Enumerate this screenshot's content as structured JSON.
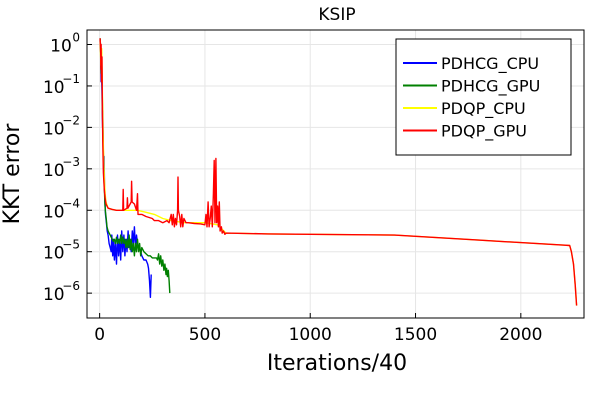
{
  "chart_data": {
    "type": "line",
    "title": "KSIP",
    "xlabel": "Iterations/40",
    "ylabel": "KKT error",
    "xlim": [
      -60,
      2300
    ],
    "ylim_log10": [
      -6.6,
      0.35
    ],
    "yscale": "log",
    "grid": true,
    "legend_position": "top-right",
    "x_ticks": [
      0,
      500,
      1000,
      1500,
      2000
    ],
    "x_tick_labels": [
      "0",
      "500",
      "1000",
      "1500",
      "2000"
    ],
    "y_ticks_log10": [
      0,
      -1,
      -2,
      -3,
      -4,
      -5,
      -6
    ],
    "y_tick_labels": [
      {
        "base": "10",
        "exp": "0"
      },
      {
        "base": "10",
        "exp": "−1"
      },
      {
        "base": "10",
        "exp": "−2"
      },
      {
        "base": "10",
        "exp": "−3"
      },
      {
        "base": "10",
        "exp": "−4"
      },
      {
        "base": "10",
        "exp": "−5"
      },
      {
        "base": "10",
        "exp": "−6"
      }
    ],
    "series": [
      {
        "name": "PDHCG_CPU",
        "color": "#0000ff",
        "points": [
          [
            2,
            0.1
          ],
          [
            5,
            -0.2
          ],
          [
            7,
            -0.9
          ],
          [
            8,
            -0.25
          ],
          [
            10,
            -0.8
          ],
          [
            12,
            -1.5
          ],
          [
            14,
            -2.0
          ],
          [
            15,
            -1.6
          ],
          [
            17,
            -2.5
          ],
          [
            19,
            -3.0
          ],
          [
            21,
            -2.7
          ],
          [
            23,
            -3.4
          ],
          [
            25,
            -3.8
          ],
          [
            28,
            -4.1
          ],
          [
            32,
            -4.3
          ],
          [
            36,
            -4.5
          ],
          [
            40,
            -4.6
          ],
          [
            45,
            -4.8
          ],
          [
            50,
            -4.9
          ],
          [
            55,
            -5.0
          ],
          [
            58,
            -4.6
          ],
          [
            62,
            -5.1
          ],
          [
            66,
            -4.7
          ],
          [
            70,
            -5.2
          ],
          [
            75,
            -4.8
          ],
          [
            80,
            -5.3
          ],
          [
            85,
            -4.6
          ],
          [
            90,
            -5.1
          ],
          [
            95,
            -4.7
          ],
          [
            100,
            -5.2
          ],
          [
            105,
            -4.5
          ],
          [
            110,
            -5.0
          ],
          [
            115,
            -4.6
          ],
          [
            120,
            -5.1
          ],
          [
            125,
            -4.7
          ],
          [
            130,
            -5.0
          ],
          [
            135,
            -4.5
          ],
          [
            140,
            -4.9
          ],
          [
            145,
            -4.7
          ],
          [
            150,
            -5.0
          ],
          [
            155,
            -4.5
          ],
          [
            160,
            -4.8
          ],
          [
            165,
            -4.4
          ],
          [
            170,
            -4.9
          ],
          [
            175,
            -4.6
          ],
          [
            180,
            -4.8
          ],
          [
            185,
            -4.9
          ],
          [
            190,
            -4.9
          ],
          [
            195,
            -5.0
          ],
          [
            200,
            -5.1
          ],
          [
            210,
            -5.2
          ],
          [
            220,
            -5.2
          ],
          [
            228,
            -5.3
          ],
          [
            232,
            -5.4
          ],
          [
            237,
            -5.7
          ],
          [
            241,
            -6.1
          ],
          [
            245,
            -5.55
          ]
        ]
      },
      {
        "name": "PDHCG_GPU",
        "color": "#008000",
        "points": [
          [
            2,
            0.15
          ],
          [
            5,
            -0.1
          ],
          [
            7,
            -0.7
          ],
          [
            9,
            -0.2
          ],
          [
            11,
            -0.7
          ],
          [
            13,
            -1.4
          ],
          [
            15,
            -2.0
          ],
          [
            17,
            -2.4
          ],
          [
            19,
            -2.9
          ],
          [
            21,
            -3.3
          ],
          [
            24,
            -3.7
          ],
          [
            27,
            -4.0
          ],
          [
            31,
            -4.2
          ],
          [
            35,
            -4.4
          ],
          [
            40,
            -4.5
          ],
          [
            45,
            -4.55
          ],
          [
            50,
            -4.6
          ],
          [
            55,
            -4.65
          ],
          [
            60,
            -4.7
          ],
          [
            65,
            -4.75
          ],
          [
            70,
            -4.7
          ],
          [
            75,
            -4.8
          ],
          [
            80,
            -4.65
          ],
          [
            85,
            -4.8
          ],
          [
            90,
            -4.7
          ],
          [
            95,
            -4.8
          ],
          [
            100,
            -4.6
          ],
          [
            105,
            -4.8
          ],
          [
            110,
            -4.65
          ],
          [
            115,
            -4.8
          ],
          [
            120,
            -4.7
          ],
          [
            125,
            -4.9
          ],
          [
            130,
            -4.7
          ],
          [
            135,
            -4.9
          ],
          [
            140,
            -4.6
          ],
          [
            145,
            -4.95
          ],
          [
            150,
            -4.7
          ],
          [
            155,
            -5.0
          ],
          [
            160,
            -4.8
          ],
          [
            165,
            -5.1
          ],
          [
            170,
            -4.8
          ],
          [
            175,
            -5.0
          ],
          [
            180,
            -4.7
          ],
          [
            185,
            -5.0
          ],
          [
            190,
            -4.8
          ],
          [
            195,
            -5.1
          ],
          [
            200,
            -4.9
          ],
          [
            210,
            -5.0
          ],
          [
            220,
            -5.05
          ],
          [
            230,
            -5.1
          ],
          [
            240,
            -5.1
          ],
          [
            250,
            -5.15
          ],
          [
            260,
            -5.15
          ],
          [
            270,
            -5.15
          ],
          [
            275,
            -5.2
          ],
          [
            280,
            -5.05
          ],
          [
            285,
            -5.3
          ],
          [
            290,
            -5.1
          ],
          [
            295,
            -5.35
          ],
          [
            300,
            -5.2
          ],
          [
            305,
            -5.45
          ],
          [
            310,
            -5.3
          ],
          [
            315,
            -5.55
          ],
          [
            318,
            -5.4
          ],
          [
            322,
            -5.6
          ],
          [
            326,
            -5.45
          ],
          [
            330,
            -5.7
          ],
          [
            333,
            -6.0
          ]
        ]
      },
      {
        "name": "PDQP_CPU",
        "color": "#ffff00",
        "points": [
          [
            2,
            0.1
          ],
          [
            6,
            -0.5
          ],
          [
            10,
            -0.1
          ],
          [
            14,
            -1.5
          ],
          [
            18,
            -2.5
          ],
          [
            22,
            -3.2
          ],
          [
            26,
            -3.6
          ],
          [
            30,
            -3.8
          ],
          [
            40,
            -3.95
          ],
          [
            60,
            -3.98
          ],
          [
            80,
            -4.0
          ],
          [
            100,
            -4.0
          ],
          [
            140,
            -4.0
          ],
          [
            180,
            -4.0
          ],
          [
            220,
            -4.05
          ],
          [
            260,
            -4.1
          ],
          [
            300,
            -4.2
          ],
          [
            340,
            -4.25
          ],
          [
            400,
            -4.3
          ],
          [
            500,
            -4.3
          ],
          [
            560,
            -4.35
          ],
          [
            600,
            -4.55
          ],
          [
            800,
            -4.57
          ],
          [
            1000,
            -4.58
          ],
          [
            1200,
            -4.59
          ],
          [
            1400,
            -4.6
          ],
          [
            1600,
            -4.66
          ],
          [
            1800,
            -4.72
          ],
          [
            2000,
            -4.78
          ],
          [
            2200,
            -4.84
          ],
          [
            2232,
            -4.85
          ],
          [
            2240,
            -5.0
          ],
          [
            2250,
            -5.3
          ],
          [
            2258,
            -5.8
          ],
          [
            2265,
            -6.3
          ]
        ]
      },
      {
        "name": "PDQP_GPU",
        "color": "#ff0000",
        "points": [
          [
            2,
            0.15
          ],
          [
            5,
            -0.2
          ],
          [
            6,
            -0.6
          ],
          [
            7,
            0.0
          ],
          [
            9,
            -0.9
          ],
          [
            11,
            -0.3
          ],
          [
            13,
            -1.6
          ],
          [
            15,
            -2.4
          ],
          [
            18,
            -3.1
          ],
          [
            22,
            -3.5
          ],
          [
            26,
            -3.7
          ],
          [
            30,
            -3.85
          ],
          [
            40,
            -3.95
          ],
          [
            60,
            -3.98
          ],
          [
            80,
            -4.0
          ],
          [
            100,
            -4.0
          ],
          [
            110,
            -4.0
          ],
          [
            112,
            -3.5
          ],
          [
            114,
            -4.0
          ],
          [
            130,
            -3.95
          ],
          [
            132,
            -3.7
          ],
          [
            134,
            -3.95
          ],
          [
            150,
            -3.8
          ],
          [
            152,
            -3.3
          ],
          [
            154,
            -3.8
          ],
          [
            165,
            -3.85
          ],
          [
            175,
            -4.0
          ],
          [
            180,
            -3.6
          ],
          [
            182,
            -4.1
          ],
          [
            200,
            -4.1
          ],
          [
            220,
            -4.15
          ],
          [
            250,
            -4.2
          ],
          [
            260,
            -4.25
          ],
          [
            280,
            -4.25
          ],
          [
            300,
            -4.3
          ],
          [
            320,
            -4.25
          ],
          [
            330,
            -4.3
          ],
          [
            340,
            -4.1
          ],
          [
            345,
            -4.35
          ],
          [
            350,
            -4.1
          ],
          [
            355,
            -4.4
          ],
          [
            360,
            -4.2
          ],
          [
            365,
            -4.35
          ],
          [
            370,
            -4.0
          ],
          [
            372,
            -3.2
          ],
          [
            374,
            -4.0
          ],
          [
            380,
            -4.15
          ],
          [
            385,
            -4.4
          ],
          [
            390,
            -4.1
          ],
          [
            395,
            -4.4
          ],
          [
            400,
            -4.2
          ],
          [
            410,
            -4.3
          ],
          [
            420,
            -4.3
          ],
          [
            450,
            -4.32
          ],
          [
            480,
            -4.33
          ],
          [
            500,
            -4.35
          ],
          [
            505,
            -4.1
          ],
          [
            510,
            -4.4
          ],
          [
            515,
            -3.8
          ],
          [
            520,
            -4.4
          ],
          [
            525,
            -4.2
          ],
          [
            530,
            -3.9
          ],
          [
            535,
            -4.4
          ],
          [
            540,
            -3.6
          ],
          [
            544,
            -2.8
          ],
          [
            548,
            -4.3
          ],
          [
            552,
            -2.75
          ],
          [
            556,
            -4.3
          ],
          [
            560,
            -3.9
          ],
          [
            564,
            -4.4
          ],
          [
            568,
            -3.8
          ],
          [
            572,
            -4.5
          ],
          [
            578,
            -4.4
          ],
          [
            582,
            -4.55
          ],
          [
            588,
            -4.5
          ],
          [
            595,
            -4.58
          ],
          [
            600,
            -4.55
          ],
          [
            800,
            -4.57
          ],
          [
            1000,
            -4.58
          ],
          [
            1200,
            -4.59
          ],
          [
            1400,
            -4.6
          ],
          [
            1600,
            -4.66
          ],
          [
            1800,
            -4.72
          ],
          [
            2000,
            -4.78
          ],
          [
            2200,
            -4.84
          ],
          [
            2232,
            -4.85
          ],
          [
            2240,
            -5.0
          ],
          [
            2250,
            -5.3
          ],
          [
            2258,
            -5.8
          ],
          [
            2265,
            -6.3
          ]
        ]
      }
    ]
  }
}
